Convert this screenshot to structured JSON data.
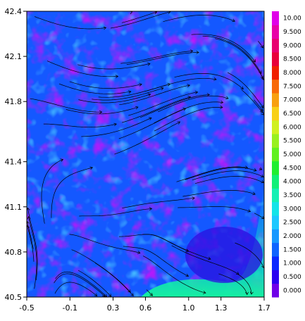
{
  "chart_data": {
    "type": "heatmap",
    "title": "",
    "xlabel": "",
    "ylabel": "",
    "xlim": [
      -0.5,
      1.7
    ],
    "ylim": [
      40.5,
      42.4
    ],
    "x_ticks": [
      "-0.5",
      "-0.1",
      "0.3",
      "0.6",
      "1.0",
      "1.3",
      "1.7"
    ],
    "x_tick_values": [
      -0.5,
      -0.1,
      0.3,
      0.6,
      1.0,
      1.3,
      1.7
    ],
    "y_ticks": [
      "40.5",
      "40.8",
      "41.1",
      "41.4",
      "41.8",
      "42.1",
      "42.4"
    ],
    "y_tick_values": [
      40.5,
      40.8,
      41.1,
      41.4,
      41.8,
      42.1,
      42.4
    ],
    "colorbar": {
      "labels": [
        "0.000",
        "0.500",
        "1.000",
        "1.500",
        "2.000",
        "2.500",
        "3.000",
        "3.500",
        "4.000",
        "4.500",
        "5.000",
        "5.500",
        "6.000",
        "6.500",
        "7.000",
        "7.500",
        "8.000",
        "8.500",
        "9.000",
        "9.500",
        "10.00"
      ],
      "colors": [
        "#6f00e8",
        "#2a00f0",
        "#0a28ff",
        "#1064ff",
        "#1898ff",
        "#1ec8ff",
        "#14e4e8",
        "#14f0b4",
        "#10f078",
        "#20ee30",
        "#60f020",
        "#98f020",
        "#d0f020",
        "#f8d018",
        "#f8a010",
        "#f86a08",
        "#f02000",
        "#e8003a",
        "#e80070",
        "#e800a8",
        "#e000e8"
      ]
    },
    "field": {
      "dominant_range": [
        0.5,
        2.5
      ],
      "notes_visible": "wind speed style field with streamlines"
    },
    "grid": false,
    "legend": "colorbar-right"
  }
}
